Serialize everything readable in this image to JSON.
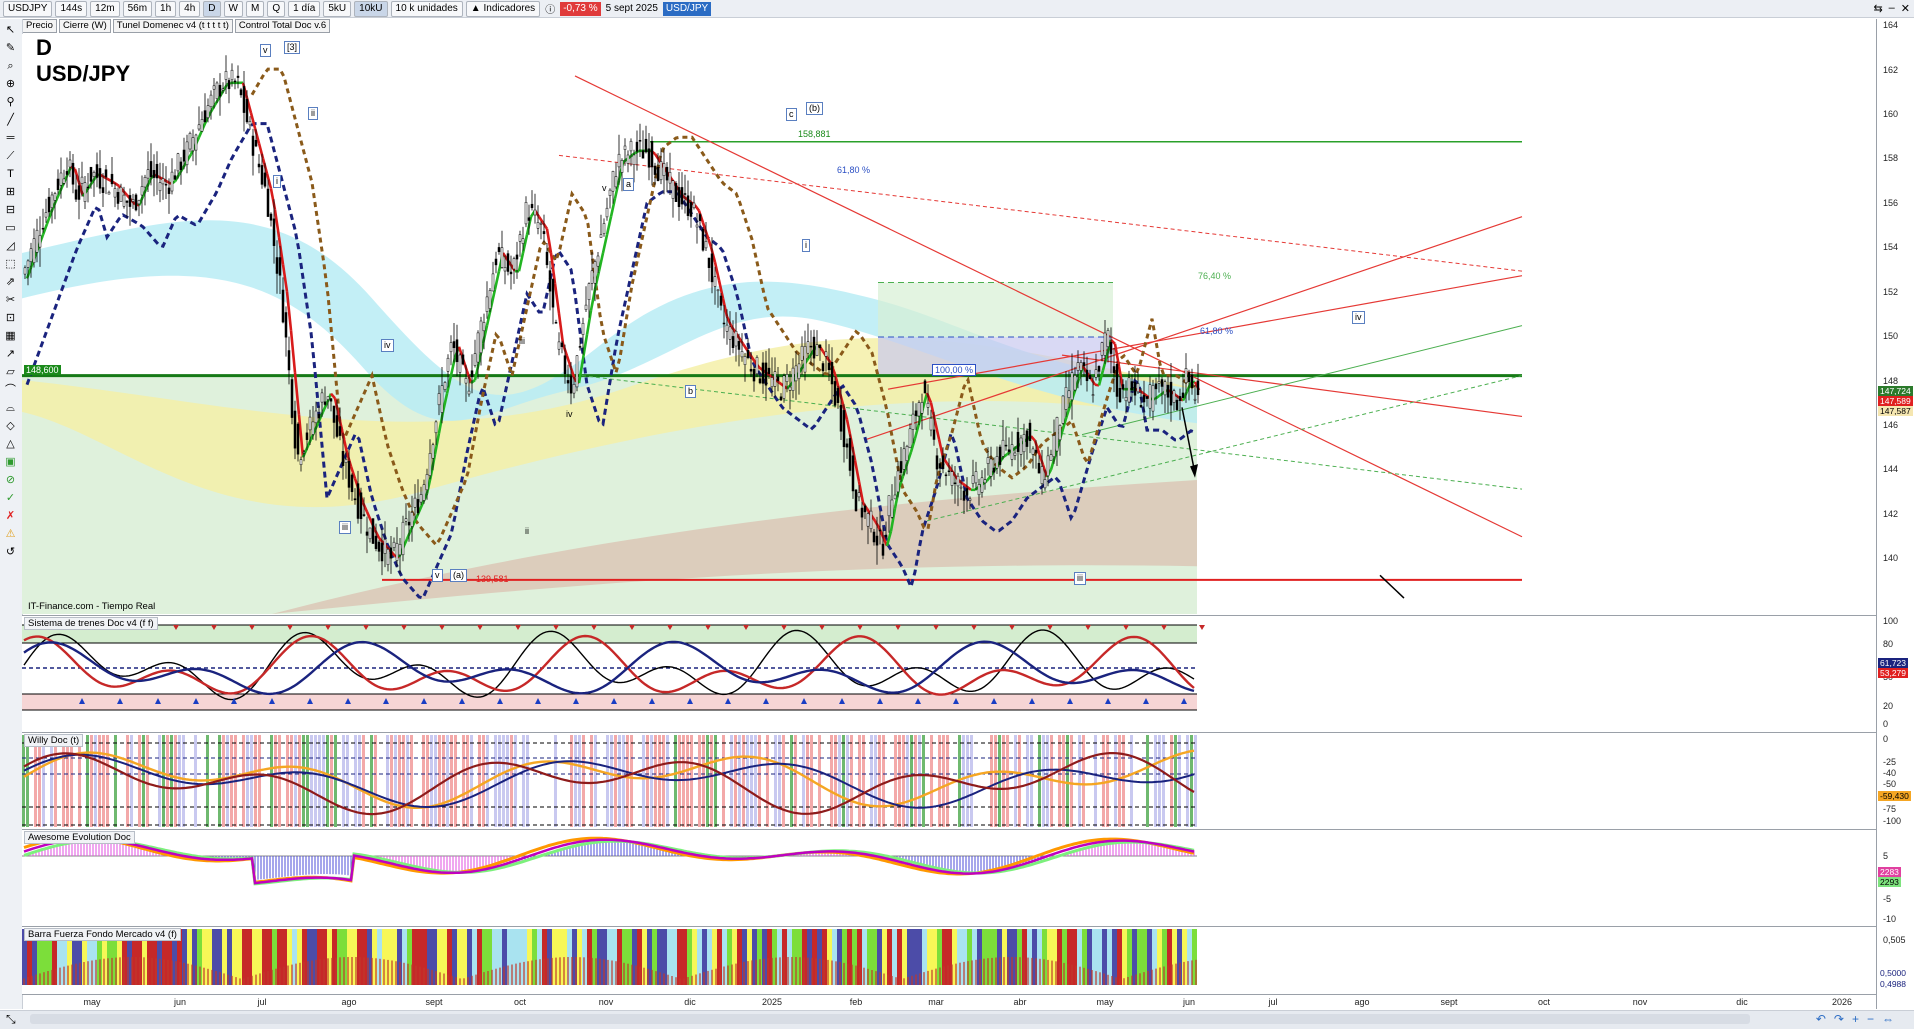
{
  "toolbar": {
    "symbol": "USDJPY",
    "intervals": [
      "144s",
      "12m",
      "56m",
      "1h",
      "4h",
      "D",
      "W",
      "M",
      "Q"
    ],
    "active_interval": "D",
    "range": "1 día",
    "units": [
      "5kU",
      "10kU"
    ],
    "active_unit": "10kU",
    "unit_count": "10 k unidades",
    "indicators_label": "Indicadores",
    "change": "-0,73 %",
    "date": "5 sept 2025",
    "symbol_badge": "USD/JPY"
  },
  "indicator_chips": [
    "Precio",
    "Cierre (W)",
    "Tunel Domenec v4 (t t t t t)",
    "Control Total Doc v.6"
  ],
  "main_chart": {
    "timeframe": "D",
    "symbol": "USD/JPY",
    "source": "IT-Finance.com - Tiempo Real",
    "level_148": "148,600",
    "level_158": "158,881",
    "level_139": "139,581",
    "fib_7640": "76,40 %",
    "fib_6180": "61,80 %",
    "fib_100": "100,00 %",
    "fib_6180b": "61,80 %",
    "wave_labels": {
      "v1": "v",
      "w3": "[3]",
      "ii1": "ii",
      "i1": "i",
      "iv1": "iv",
      "iii1": "iii",
      "v2": "v",
      "a1": "(a)",
      "iii2": "iii",
      "ii2": "ii",
      "c1": "c",
      "b1": "(b)",
      "v3": "v",
      "a2": "a",
      "b2": "b",
      "i2": "i",
      "iv2": "iv",
      "iii3": "iii",
      "iv3": "iv"
    },
    "price_ticks": [
      "164",
      "162",
      "160",
      "158",
      "156",
      "154",
      "152",
      "150",
      "148",
      "146",
      "144",
      "142",
      "140"
    ],
    "price_tags": [
      "147,724",
      "147,589",
      "147,587"
    ]
  },
  "panes": {
    "trenes": {
      "title": "Sistema de trenes Doc v4 (f f)",
      "ticks": [
        "100",
        "80",
        "50",
        "20",
        "0"
      ],
      "tags": [
        "61,723",
        "53,279"
      ]
    },
    "willy": {
      "title": "Willy Doc (t)",
      "ticks": [
        "0",
        "-25",
        "-40",
        "-50",
        "-75",
        "-100"
      ],
      "tags": [
        "-59,430"
      ]
    },
    "awesome": {
      "title": "Awesome Evolution Doc",
      "ticks": [
        "5",
        "0",
        "-5",
        "-10"
      ],
      "tags": [
        "2283",
        "2293"
      ]
    },
    "barra": {
      "title": "Barra Fuerza Fondo Mercado v4 (f)",
      "ticks": [
        "0,505",
        "0,5000",
        "0,4988"
      ],
      "tags": []
    }
  },
  "x_axis": {
    "labels": [
      "may",
      "jun",
      "jul",
      "ago",
      "sept",
      "oct",
      "nov",
      "dic",
      "2025",
      "feb",
      "mar",
      "abr",
      "may",
      "jun",
      "jul",
      "ago",
      "sept",
      "oct",
      "nov",
      "dic",
      "2026"
    ]
  },
  "colors": {
    "green_line": "#1a8a1a",
    "red_line": "#e02020",
    "blue_dash": "#1a237e",
    "brown_dash": "#8a5a1a",
    "cyan_band": "#b9ecf5",
    "yellow_band": "#f5f0a8",
    "green_bg": "#dff1dc",
    "tan_bg": "#dcc9b8"
  }
}
